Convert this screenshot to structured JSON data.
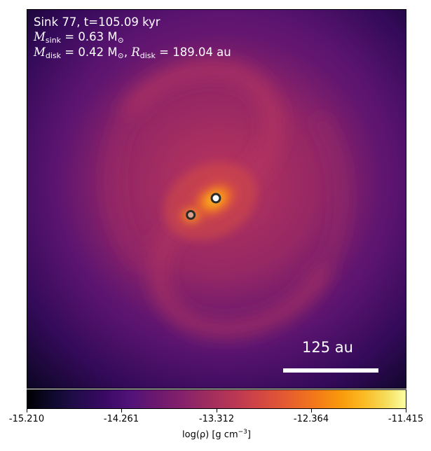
{
  "annotations": {
    "line1": "Sink 77, t=105.09 kyr",
    "msink_symbol": "M",
    "msink_sub": "sink",
    "msink_value": " = 0.63 M",
    "sun_symbol": "⊙",
    "mdisk_symbol": "M",
    "mdisk_sub": "disk",
    "mdisk_value": " = 0.42 M",
    "rdisk_symbol": "R",
    "rdisk_sub": "disk",
    "rdisk_value": " = 189.04 au",
    "separator": ", "
  },
  "scale_bar": {
    "label": "125 au"
  },
  "colorbar": {
    "ticks": [
      "-15.210",
      "-14.261",
      "-13.312",
      "-12.364",
      "-11.415"
    ],
    "label_prefix": "log(ρ) [g cm",
    "label_exp": "−3",
    "label_suffix": "]",
    "colormap": "inferno"
  },
  "sinks": {
    "count": 2
  }
}
